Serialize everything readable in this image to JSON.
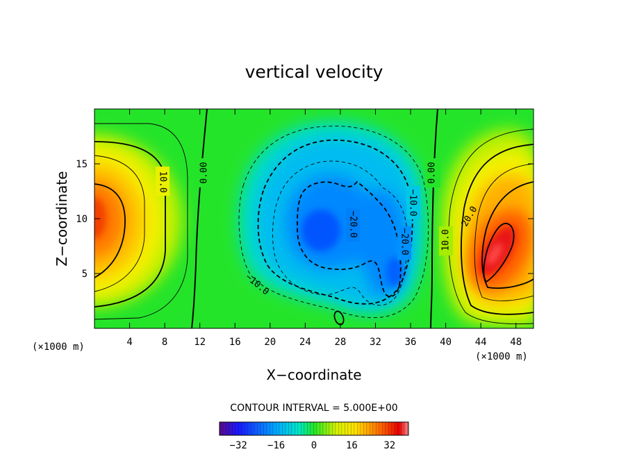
{
  "chart_data": {
    "type": "heatmap",
    "title": "vertical velocity",
    "xlabel": "X−coordinate",
    "ylabel": "Z−coordinate",
    "x_unit": "(×1000 m)",
    "z_unit": "(×1000 m)",
    "xlim": [
      0,
      50
    ],
    "ylim": [
      0,
      20
    ],
    "x_ticks": [
      "4",
      "8",
      "12",
      "16",
      "20",
      "24",
      "28",
      "32",
      "36",
      "40",
      "44",
      "48"
    ],
    "y_ticks": [
      "5",
      "10",
      "15"
    ],
    "contour_interval": "CONTOUR INTERVAL = 5.000E+00",
    "colorbar": {
      "range": [
        -40,
        40
      ],
      "ticks": [
        "−32",
        "−16",
        "0",
        "16",
        "32"
      ]
    },
    "features": [
      {
        "kind": "updraft",
        "x": 0,
        "z": 10.5,
        "peak": 30
      },
      {
        "kind": "downdraft",
        "x": 26,
        "z": 9,
        "peak": -30
      },
      {
        "kind": "downdraft",
        "x": 34,
        "z": 5.5,
        "peak": -25
      },
      {
        "kind": "updraft",
        "x": 46.5,
        "z": 7.5,
        "peak": 40
      }
    ],
    "contour_labels": [
      {
        "text": "0.00",
        "x": 12.3,
        "z": 14
      },
      {
        "text": "10.0",
        "x": 7.6,
        "z": 12.7
      },
      {
        "text": "0.00",
        "x": 38.3,
        "z": 14
      },
      {
        "text": "−10.0",
        "x": 36,
        "z": 11.5
      },
      {
        "text": "−20.0",
        "x": 29.6,
        "z": 9.9
      },
      {
        "text": "−20.0",
        "x": 35,
        "z": 8.3
      },
      {
        "text": "−10.0",
        "x": 17.2,
        "z": 3.5
      },
      {
        "text": "10.0",
        "x": 40,
        "z": 8.2
      },
      {
        "text": "20.0",
        "x": 42.8,
        "z": 10.6
      }
    ]
  }
}
